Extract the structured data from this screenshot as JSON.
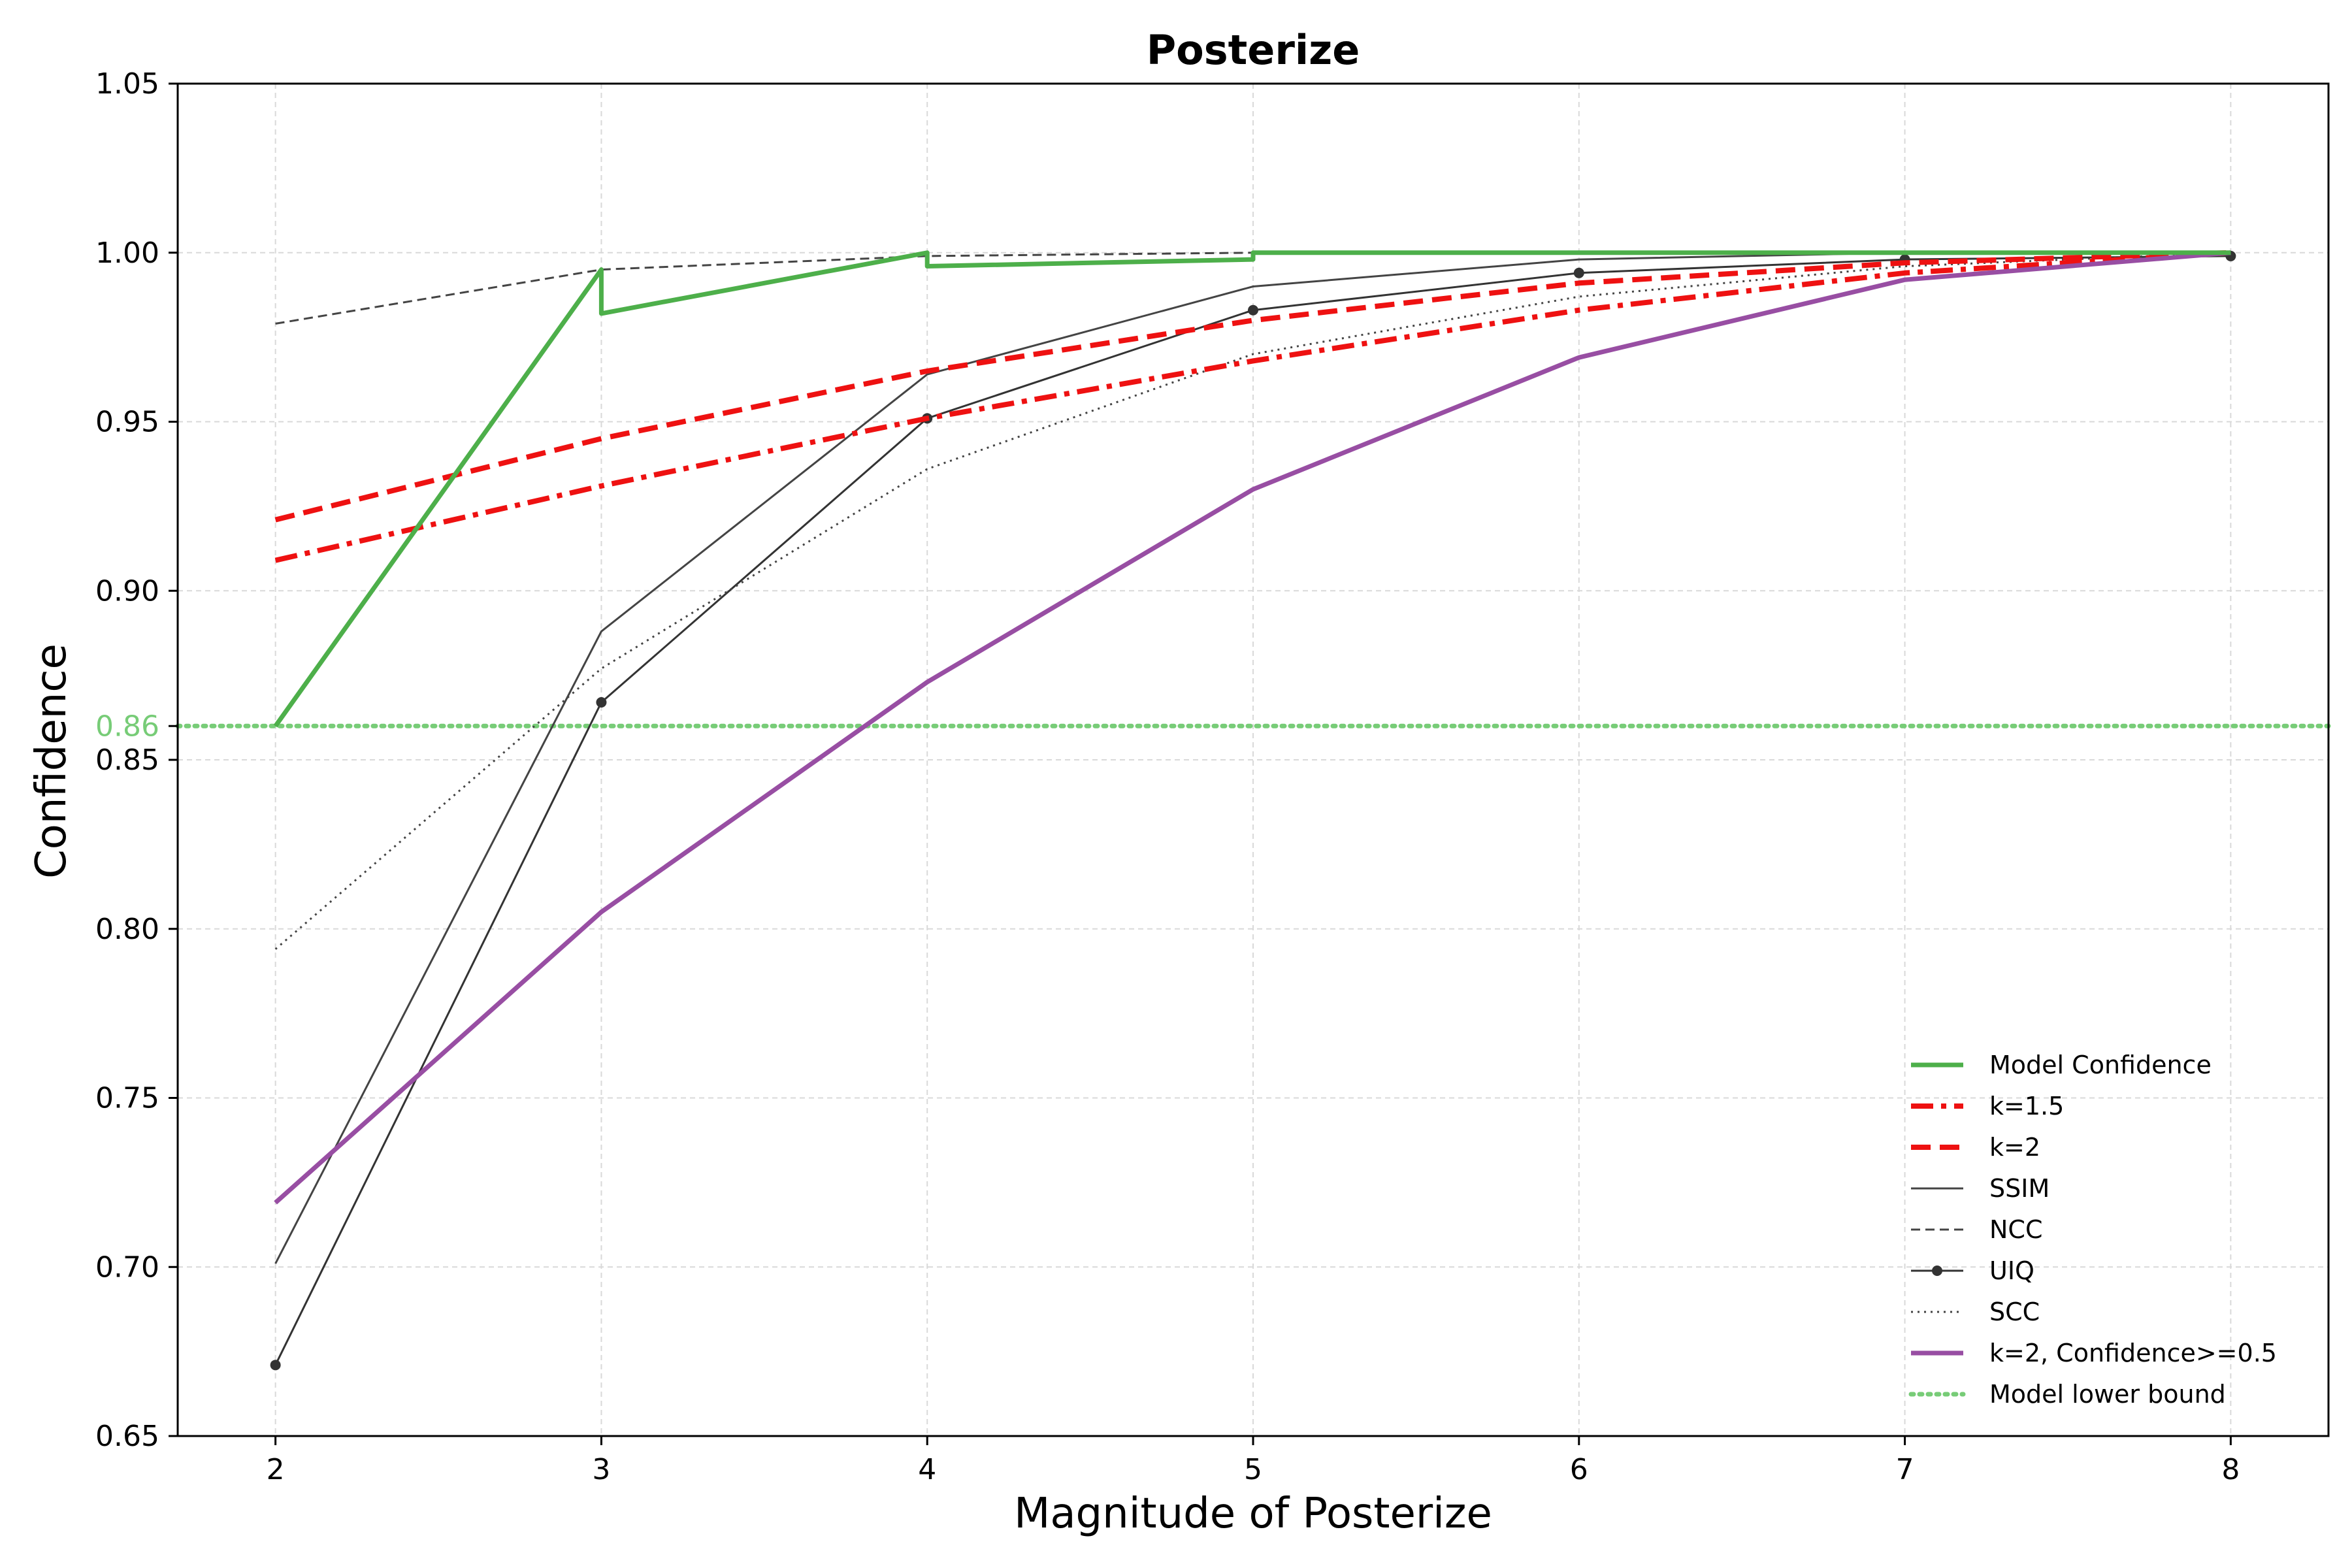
{
  "chart_data": {
    "type": "line",
    "title": "Posterize",
    "xlabel": "Magnitude of Posterize",
    "ylabel": "Confidence",
    "xlim": [
      1.7,
      8.3
    ],
    "ylim": [
      0.65,
      1.05
    ],
    "x_ticks": [
      2,
      3,
      4,
      5,
      6,
      7,
      8
    ],
    "y_ticks": [
      0.65,
      0.7,
      0.75,
      0.8,
      0.85,
      0.9,
      0.95,
      1.0,
      1.05
    ],
    "y_tick_labels": [
      "0.65",
      "0.70",
      "0.75",
      "0.80",
      "0.85",
      "0.90",
      "0.95",
      "1.00",
      "1.05"
    ],
    "grid": true,
    "legend_position": "lower-right",
    "reference_line": {
      "name": "Model lower bound",
      "y": 0.86,
      "label": "0.86",
      "color": "#77cc77"
    },
    "series": [
      {
        "name": "Model Confidence",
        "color": "#4daf4a",
        "style": "solid-thick",
        "x": [
          2,
          3,
          3,
          4,
          4,
          5,
          5,
          6,
          7,
          8
        ],
        "y": [
          0.86,
          0.995,
          0.982,
          1.0,
          0.996,
          0.998,
          1.0,
          1.0,
          1.0,
          1.0
        ]
      },
      {
        "name": "k=1.5",
        "color": "#ee1111",
        "style": "dashdot",
        "x": [
          2,
          3,
          4,
          5,
          6,
          7,
          8
        ],
        "y": [
          0.909,
          0.931,
          0.951,
          0.968,
          0.983,
          0.994,
          1.0
        ]
      },
      {
        "name": "k=2",
        "color": "#ee1111",
        "style": "dashed",
        "x": [
          2,
          3,
          4,
          5,
          6,
          7,
          8
        ],
        "y": [
          0.921,
          0.945,
          0.965,
          0.98,
          0.991,
          0.997,
          1.0
        ]
      },
      {
        "name": "SSIM",
        "color": "#444444",
        "style": "solid-thin",
        "x": [
          2,
          3,
          4,
          5,
          6,
          7,
          8
        ],
        "y": [
          0.701,
          0.888,
          0.964,
          0.99,
          0.998,
          1.0,
          1.0
        ]
      },
      {
        "name": "NCC",
        "color": "#444444",
        "style": "dashed-thin",
        "x": [
          2,
          3,
          4,
          5,
          6,
          7,
          8
        ],
        "y": [
          0.979,
          0.995,
          0.999,
          1.0,
          1.0,
          1.0,
          1.0
        ]
      },
      {
        "name": "UIQ",
        "color": "#333333",
        "style": "solid-marker",
        "x": [
          2,
          3,
          4,
          5,
          6,
          7,
          8
        ],
        "y": [
          0.671,
          0.867,
          0.951,
          0.983,
          0.994,
          0.998,
          0.999
        ]
      },
      {
        "name": "SCC",
        "color": "#444444",
        "style": "dotted",
        "x": [
          2,
          3,
          4,
          5,
          6,
          7,
          8
        ],
        "y": [
          0.794,
          0.877,
          0.936,
          0.97,
          0.987,
          0.996,
          1.0
        ]
      },
      {
        "name": "k=2, Confidence>=0.5",
        "color": "#984ea3",
        "style": "solid-thick",
        "x": [
          2,
          3,
          4,
          5,
          6,
          7,
          8
        ],
        "y": [
          0.719,
          0.805,
          0.873,
          0.93,
          0.969,
          0.992,
          1.0
        ]
      }
    ]
  }
}
